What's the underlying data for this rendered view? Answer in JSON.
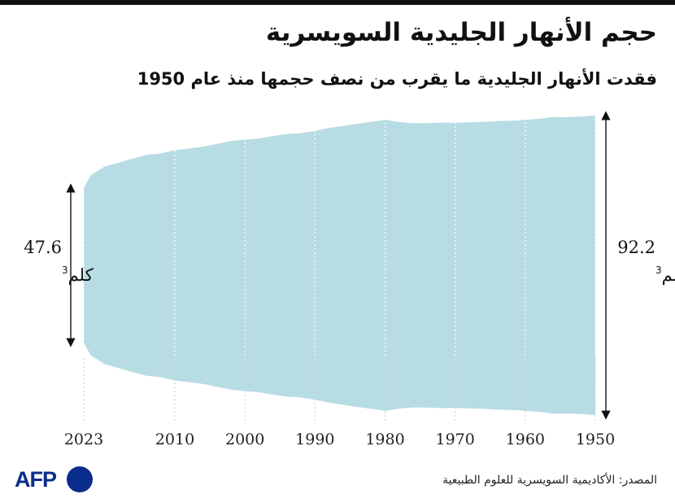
{
  "header": {
    "title": "حجم الأنهار الجليدية السويسرية",
    "subtitle": "فقدت الأنهار الجليدية ما يقرب من نصف حجمها منذ عام 1950"
  },
  "chart_data": {
    "type": "area",
    "title": "حجم الأنهار الجليدية السويسرية",
    "subtitle": "فقدت الأنهار الجليدية ما يقرب من نصف حجمها منذ عام 1950",
    "x_direction": "reversed",
    "xlim": [
      1950,
      2023
    ],
    "ylim": [
      0,
      92.2
    ],
    "unit": "كلم³",
    "x_ticks": [
      1950,
      1960,
      1970,
      1980,
      1990,
      2000,
      2010,
      2023
    ],
    "x_tick_labels": [
      "1950",
      "1960",
      "1970",
      "1980",
      "1990",
      "2000",
      "2010",
      "2023"
    ],
    "grid": "vertical-dotted",
    "series": [
      {
        "color": "#b7dce4",
        "points": [
          {
            "x": 1950,
            "y": 92.2
          },
          {
            "x": 1952,
            "y": 91.6
          },
          {
            "x": 1954,
            "y": 91.2
          },
          {
            "x": 1956,
            "y": 91.3
          },
          {
            "x": 1958,
            "y": 90.2
          },
          {
            "x": 1960,
            "y": 89.6
          },
          {
            "x": 1962,
            "y": 89.0
          },
          {
            "x": 1964,
            "y": 88.8
          },
          {
            "x": 1966,
            "y": 88.3
          },
          {
            "x": 1968,
            "y": 88.1
          },
          {
            "x": 1970,
            "y": 87.8
          },
          {
            "x": 1972,
            "y": 87.9
          },
          {
            "x": 1974,
            "y": 87.6
          },
          {
            "x": 1976,
            "y": 87.5
          },
          {
            "x": 1978,
            "y": 88.2
          },
          {
            "x": 1980,
            "y": 89.6
          },
          {
            "x": 1982,
            "y": 88.3
          },
          {
            "x": 1984,
            "y": 87.2
          },
          {
            "x": 1986,
            "y": 85.8
          },
          {
            "x": 1988,
            "y": 84.6
          },
          {
            "x": 1990,
            "y": 82.8
          },
          {
            "x": 1992,
            "y": 81.4
          },
          {
            "x": 1994,
            "y": 80.9
          },
          {
            "x": 1996,
            "y": 79.6
          },
          {
            "x": 1998,
            "y": 78.1
          },
          {
            "x": 2000,
            "y": 77.4
          },
          {
            "x": 2002,
            "y": 76.5
          },
          {
            "x": 2004,
            "y": 74.8
          },
          {
            "x": 2006,
            "y": 73.0
          },
          {
            "x": 2008,
            "y": 71.9
          },
          {
            "x": 2010,
            "y": 70.9
          },
          {
            "x": 2012,
            "y": 68.9
          },
          {
            "x": 2014,
            "y": 68.0
          },
          {
            "x": 2016,
            "y": 65.8
          },
          {
            "x": 2018,
            "y": 63.3
          },
          {
            "x": 2020,
            "y": 60.9
          },
          {
            "x": 2022,
            "y": 55.4
          },
          {
            "x": 2023,
            "y": 47.6
          }
        ]
      }
    ],
    "annotations": [
      {
        "x": 1950,
        "value": "92.2",
        "unit": "كلم",
        "superscript": "3"
      },
      {
        "x": 2023,
        "value": "47.6",
        "unit": "كلم",
        "superscript": "3"
      }
    ]
  },
  "footer": {
    "source": "المصدر: الأكاديمية السويسرية للعلوم الطبيعية",
    "logo": "AFP"
  }
}
